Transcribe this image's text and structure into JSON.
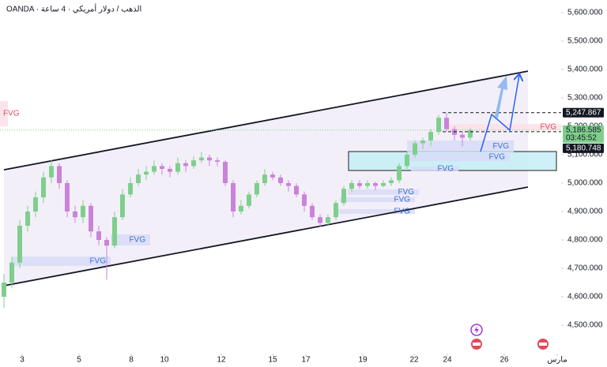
{
  "header": "OANDA · الذهب / دولار أمريكي · 4 ساعة",
  "chart_data": {
    "type": "candlestick",
    "up_color": "#7fcf8c",
    "down_color": "#c983d8",
    "candles": [
      [
        4600,
        4680,
        4560,
        4650
      ],
      [
        4650,
        4740,
        4630,
        4720
      ],
      [
        4720,
        4870,
        4700,
        4850
      ],
      [
        4850,
        4920,
        4830,
        4900
      ],
      [
        4900,
        4970,
        4880,
        4950
      ],
      [
        4950,
        5040,
        4930,
        5020
      ],
      [
        5020,
        5080,
        5000,
        5060
      ],
      [
        5060,
        5070,
        4980,
        5000
      ],
      [
        5000,
        5010,
        4880,
        4900
      ],
      [
        4900,
        4920,
        4860,
        4880
      ],
      [
        4880,
        4940,
        4860,
        4920
      ],
      [
        4920,
        4930,
        4810,
        4830
      ],
      [
        4830,
        4850,
        4780,
        4800
      ],
      [
        4800,
        4810,
        4660,
        4780
      ],
      [
        4780,
        4900,
        4770,
        4880
      ],
      [
        4880,
        4980,
        4870,
        4960
      ],
      [
        4960,
        5020,
        4950,
        5000
      ],
      [
        5000,
        5050,
        4990,
        5030
      ],
      [
        5030,
        5060,
        5010,
        5040
      ],
      [
        5040,
        5080,
        5030,
        5060
      ],
      [
        5060,
        5070,
        5030,
        5050
      ],
      [
        5050,
        5060,
        5020,
        5040
      ],
      [
        5040,
        5090,
        5030,
        5070
      ],
      [
        5070,
        5080,
        5040,
        5060
      ],
      [
        5060,
        5095,
        5050,
        5080
      ],
      [
        5080,
        5110,
        5070,
        5090
      ],
      [
        5090,
        5100,
        5060,
        5080
      ],
      [
        5080,
        5090,
        5060,
        5075
      ],
      [
        5075,
        5080,
        4990,
        5000
      ],
      [
        5000,
        5010,
        4880,
        4900
      ],
      [
        4900,
        4940,
        4890,
        4920
      ],
      [
        4920,
        4970,
        4910,
        4960
      ],
      [
        4960,
        5010,
        4950,
        5000
      ],
      [
        5000,
        5050,
        4990,
        5030
      ],
      [
        5030,
        5040,
        5010,
        5020
      ],
      [
        5020,
        5030,
        4990,
        5000
      ],
      [
        5000,
        5010,
        4970,
        4990
      ],
      [
        4990,
        5000,
        4950,
        4960
      ],
      [
        4960,
        4970,
        4900,
        4920
      ],
      [
        4920,
        4930,
        4870,
        4880
      ],
      [
        4880,
        4890,
        4845,
        4860
      ],
      [
        4860,
        4890,
        4850,
        4880
      ],
      [
        4880,
        4940,
        4870,
        4930
      ],
      [
        4930,
        4990,
        4920,
        4980
      ],
      [
        4980,
        5010,
        4970,
        5000
      ],
      [
        5000,
        5010,
        4980,
        4990
      ],
      [
        4990,
        5010,
        4980,
        5000
      ],
      [
        5000,
        5005,
        4975,
        4990
      ],
      [
        4990,
        5010,
        4985,
        5000
      ],
      [
        5000,
        5020,
        4990,
        5010
      ],
      [
        5010,
        5070,
        5000,
        5060
      ],
      [
        5060,
        5110,
        5050,
        5100
      ],
      [
        5100,
        5150,
        5090,
        5140
      ],
      [
        5140,
        5160,
        5120,
        5150
      ],
      [
        5150,
        5190,
        5130,
        5180
      ],
      [
        5180,
        5240,
        5170,
        5230
      ],
      [
        5230,
        5248,
        5180,
        5190
      ],
      [
        5190,
        5200,
        5150,
        5170
      ],
      [
        5170,
        5180,
        5130,
        5160
      ],
      [
        5160,
        5195,
        5150,
        5186.585
      ]
    ],
    "xlim": [
      -0.5,
      70.5
    ],
    "ylim": [
      4352.78,
      5644.44
    ],
    "xticks": [
      {
        "value": 2.3,
        "label": "3"
      },
      {
        "value": 9.5,
        "label": "5"
      },
      {
        "value": 16.1,
        "label": "8"
      },
      {
        "value": 20.3,
        "label": "10"
      },
      {
        "value": 27.5,
        "label": "12"
      },
      {
        "value": 34,
        "label": "15"
      },
      {
        "value": 38.2,
        "label": "17"
      },
      {
        "value": 45.4,
        "label": "19"
      },
      {
        "value": 51.9,
        "label": "22"
      },
      {
        "value": 56.1,
        "label": "24"
      },
      {
        "value": 63.3,
        "label": "26"
      },
      {
        "value": 70,
        "label": "مارس"
      }
    ],
    "yticks": [
      {
        "value": 4500,
        "label": "4,500.000"
      },
      {
        "value": 4600,
        "label": "4,600.000"
      },
      {
        "value": 4700,
        "label": "4,700.000"
      },
      {
        "value": 4800,
        "label": "4,800.000"
      },
      {
        "value": 4900,
        "label": "4,900.000"
      },
      {
        "value": 5000,
        "label": "5,000.000"
      },
      {
        "value": 5100,
        "label": "5,100.000"
      },
      {
        "value": 5200,
        "label": "5,200.000"
      },
      {
        "value": 5300,
        "label": "5,300.000"
      },
      {
        "value": 5400,
        "label": "5,400.000"
      },
      {
        "value": 5500,
        "label": "5,500.000"
      },
      {
        "value": 5600,
        "label": "5,600.000"
      }
    ],
    "channel": {
      "upper": [
        [
          0,
          5047
        ],
        [
          66.3,
          5394
        ]
      ],
      "lower": [
        [
          0,
          4639
        ],
        [
          66.3,
          4986
        ]
      ]
    },
    "zones": [
      {
        "label": "FVG",
        "x": [
          1,
          13.5
        ],
        "y": [
          4708.3,
          4741.7
        ],
        "fill": "#d7dcf7",
        "label_color": "#3f6fd8"
      },
      {
        "label": "FVG",
        "x": [
          13.5,
          18.5
        ],
        "y": [
          4780.6,
          4819.4
        ],
        "fill": "#d7dcf7",
        "label_color": "#3f6fd8"
      },
      {
        "label": "FVG",
        "x": [
          42,
          52
        ],
        "y": [
          4891.7,
          4908.3
        ],
        "fill": "#d7dcf7",
        "label_color": "#3f6fd8"
      },
      {
        "label": "FVG",
        "x": [
          42.5,
          52
        ],
        "y": [
          4933.3,
          4950
        ],
        "fill": "#d7dcf7",
        "label_color": "#3f6fd8"
      },
      {
        "label": "FVG",
        "x": [
          43.5,
          52.5
        ],
        "y": [
          4958.3,
          4977.8
        ],
        "fill": "#d7dcf7",
        "label_color": "#3f6fd8"
      },
      {
        "x": [
          43.6,
          69.9
        ],
        "y": [
          5044.4,
          5111.1
        ],
        "fill": "#c6eef5",
        "border": "#222"
      },
      {
        "label": "FVG",
        "x": [
          51.5,
          57.5
        ],
        "y": [
          5041.7,
          5058.3
        ],
        "fill": "#d7dcf7",
        "label_color": "#3f6fd8"
      },
      {
        "label": "FVG",
        "x": [
          51,
          64
        ],
        "y": [
          5077.8,
          5105.6
        ],
        "fill": "#d7dcf7",
        "label_color": "#3f6fd8"
      },
      {
        "label": "FVG",
        "x": [
          51,
          64.5
        ],
        "y": [
          5108.3,
          5150
        ],
        "fill": "#d7dcf7",
        "label_color": "#3f6fd8"
      },
      {
        "label": "FVG",
        "x": [
          56,
          70.5
        ],
        "y": [
          5186,
          5208
        ],
        "fill": "#fbe1e6",
        "label_color": "#e04b5b"
      },
      {
        "label": "FVG",
        "x": [
          -0.5,
          0.5
        ],
        "y": [
          5200,
          5289
        ],
        "fill": "#fbe1e6",
        "label_color": "#e04b5b"
      }
    ],
    "price_labels": [
      {
        "value": 5247.867,
        "label": "5,247.867",
        "bg": "#131722",
        "fg": "#ffffff"
      },
      {
        "value": 5186.585,
        "label": "5,186.585",
        "bg": "#7fcf8c",
        "fg": "#131722",
        "countdown": "03:45:52"
      },
      {
        "value": 5180.748,
        "label": "5,180.748",
        "bg": "#131722",
        "fg": "#ffffff"
      }
    ]
  }
}
